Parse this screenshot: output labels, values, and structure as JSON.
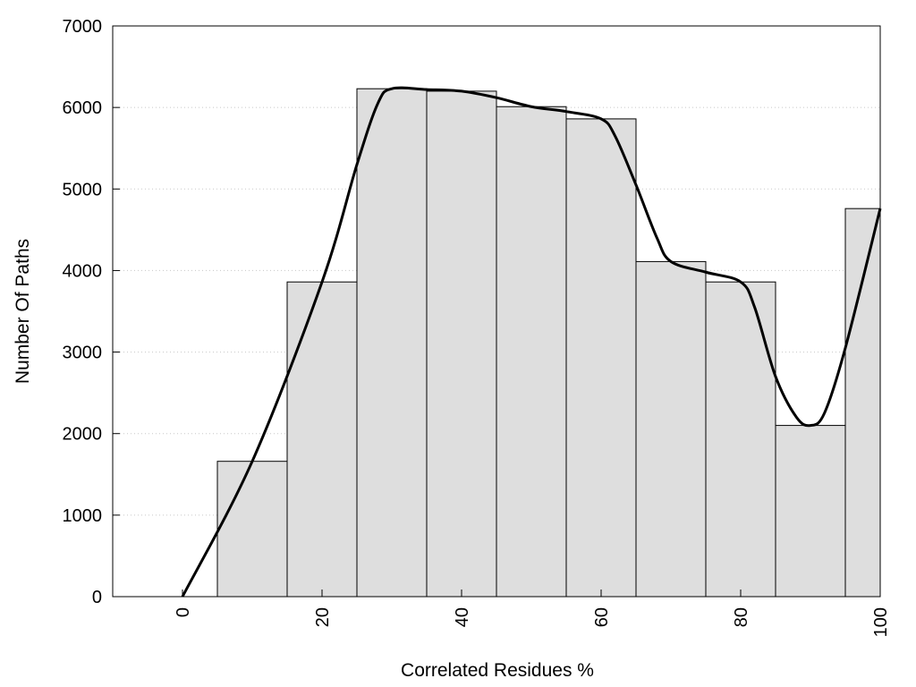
{
  "chart_data": {
    "type": "bar",
    "title": "",
    "xlabel": "Correlated Residues %",
    "ylabel": "Number Of Paths",
    "xlim": [
      -10,
      100
    ],
    "ylim": [
      0,
      7000
    ],
    "x_ticks": [
      0,
      20,
      40,
      60,
      80,
      100
    ],
    "x_tick_labels": [
      "0",
      "20",
      "40",
      "60",
      "80",
      "100"
    ],
    "y_ticks": [
      0,
      1000,
      2000,
      3000,
      4000,
      5000,
      6000,
      7000
    ],
    "y_tick_labels": [
      "0",
      "1000",
      "2000",
      "3000",
      "4000",
      "5000",
      "6000",
      "7000"
    ],
    "grid": "horizontal dotted",
    "bar_color": "#dedede",
    "bars": [
      {
        "x": 10,
        "value": 1660
      },
      {
        "x": 20,
        "value": 3860
      },
      {
        "x": 30,
        "value": 6230
      },
      {
        "x": 40,
        "value": 6200
      },
      {
        "x": 50,
        "value": 6010
      },
      {
        "x": 60,
        "value": 5860
      },
      {
        "x": 70,
        "value": 4110
      },
      {
        "x": 80,
        "value": 3860
      },
      {
        "x": 90,
        "value": 2100
      },
      {
        "x": 100,
        "value": 4760
      }
    ],
    "bar_width": 10,
    "curve": {
      "color": "#000000",
      "x": [
        0,
        10,
        20,
        25,
        28,
        30,
        35,
        40,
        45,
        50,
        55,
        60,
        62,
        65,
        68,
        70,
        75,
        80,
        82,
        85,
        88,
        90,
        92,
        95,
        100
      ],
      "y": [
        0,
        1660,
        3860,
        5300,
        6050,
        6230,
        6220,
        6200,
        6120,
        6010,
        5950,
        5860,
        5650,
        5050,
        4400,
        4110,
        3980,
        3860,
        3550,
        2700,
        2200,
        2100,
        2250,
        3050,
        4760
      ]
    }
  }
}
